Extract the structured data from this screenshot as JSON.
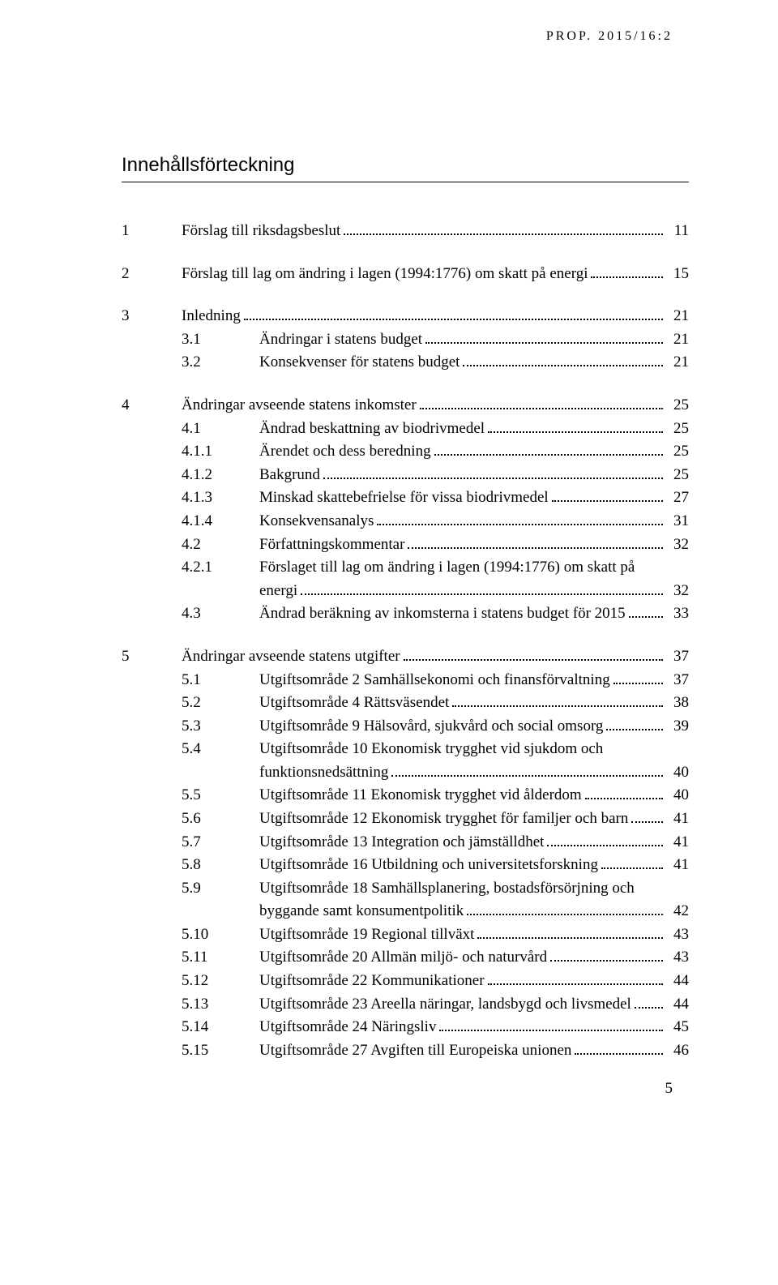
{
  "header": "PROP. 2015/16:2",
  "title": "Innehållsförteckning",
  "footer_page": "5",
  "sections": [
    {
      "num": "1",
      "entries": [
        {
          "num": "1",
          "text": "Förslag till riksdagsbeslut",
          "page": "11",
          "level": 0
        }
      ]
    },
    {
      "num": "2",
      "entries": [
        {
          "num": "2",
          "text": "Förslag till lag om ändring i lagen (1994:1776) om skatt på energi",
          "page": "15",
          "level": 0
        }
      ]
    },
    {
      "num": "3",
      "entries": [
        {
          "num": "3",
          "text": "Inledning",
          "page": "21",
          "level": 0
        },
        {
          "num": "3.1",
          "text": "Ändringar i statens budget",
          "page": "21",
          "level": 1
        },
        {
          "num": "3.2",
          "text": "Konsekvenser för statens budget",
          "page": "21",
          "level": 1
        }
      ]
    },
    {
      "num": "4",
      "entries": [
        {
          "num": "4",
          "text": "Ändringar avseende statens inkomster",
          "page": "25",
          "level": 0
        },
        {
          "num": "4.1",
          "text": "Ändrad beskattning av biodrivmedel",
          "page": "25",
          "level": 1
        },
        {
          "num": "4.1.1",
          "text": "Ärendet och dess beredning",
          "page": "25",
          "level": 1
        },
        {
          "num": "4.1.2",
          "text": "Bakgrund",
          "page": "25",
          "level": 1
        },
        {
          "num": "4.1.3",
          "text": "Minskad skattebefrielse för vissa biodrivmedel",
          "page": "27",
          "level": 1
        },
        {
          "num": "4.1.4",
          "text": "Konsekvensanalys",
          "page": "31",
          "level": 1
        },
        {
          "num": "4.2",
          "text": "Författningskommentar",
          "page": "32",
          "level": 1
        },
        {
          "num": "4.2.1",
          "text": "Förslaget till lag om ändring i lagen (1994:1776) om skatt på",
          "cont": "energi",
          "page": "32",
          "level": 1
        },
        {
          "num": "4.3",
          "text": "Ändrad beräkning av inkomsterna i statens budget för 2015",
          "page": "33",
          "level": 1
        }
      ]
    },
    {
      "num": "5",
      "entries": [
        {
          "num": "5",
          "text": "Ändringar avseende statens utgifter",
          "page": "37",
          "level": 0
        },
        {
          "num": "5.1",
          "text": "Utgiftsområde 2 Samhällsekonomi och finansförvaltning",
          "page": "37",
          "level": 1
        },
        {
          "num": "5.2",
          "text": "Utgiftsområde 4 Rättsväsendet",
          "page": "38",
          "level": 1
        },
        {
          "num": "5.3",
          "text": "Utgiftsområde 9 Hälsovård, sjukvård och social omsorg",
          "page": "39",
          "level": 1
        },
        {
          "num": "5.4",
          "text": "Utgiftsområde 10 Ekonomisk trygghet vid sjukdom och",
          "cont": "funktionsnedsättning",
          "page": "40",
          "level": 1
        },
        {
          "num": "5.5",
          "text": "Utgiftsområde 11 Ekonomisk trygghet vid ålderdom",
          "page": "40",
          "level": 1
        },
        {
          "num": "5.6",
          "text": "Utgiftsområde 12 Ekonomisk trygghet för familjer och barn",
          "page": "41",
          "level": 1
        },
        {
          "num": "5.7",
          "text": "Utgiftsområde 13 Integration och jämställdhet",
          "page": "41",
          "level": 1
        },
        {
          "num": "5.8",
          "text": "Utgiftsområde 16 Utbildning och universitetsforskning",
          "page": "41",
          "level": 1
        },
        {
          "num": "5.9",
          "text": "Utgiftsområde 18 Samhällsplanering, bostadsförsörjning och",
          "cont": "byggande samt konsumentpolitik",
          "page": "42",
          "level": 1
        },
        {
          "num": "5.10",
          "text": "Utgiftsområde 19 Regional tillväxt",
          "page": "43",
          "level": 1
        },
        {
          "num": "5.11",
          "text": "Utgiftsområde 20 Allmän miljö- och naturvård",
          "page": "43",
          "level": 1
        },
        {
          "num": "5.12",
          "text": "Utgiftsområde 22 Kommunikationer",
          "page": "44",
          "level": 1
        },
        {
          "num": "5.13",
          "text": "Utgiftsområde 23 Areella näringar, landsbygd och livsmedel",
          "page": "44",
          "level": 1
        },
        {
          "num": "5.14",
          "text": "Utgiftsområde 24 Näringsliv",
          "page": "45",
          "level": 1
        },
        {
          "num": "5.15",
          "text": "Utgiftsområde 27 Avgiften till Europeiska unionen",
          "page": "46",
          "level": 1
        }
      ]
    }
  ]
}
